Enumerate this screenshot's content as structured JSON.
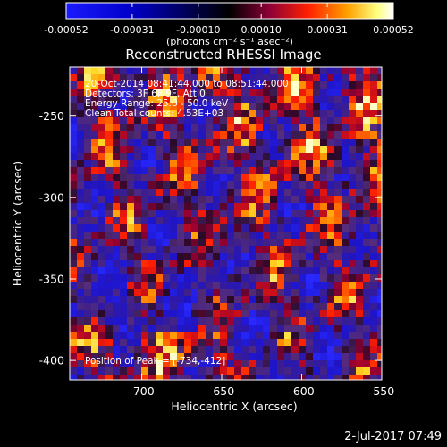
{
  "chart_data": {
    "type": "heatmap",
    "title": "Reconstructed RHESSI Image",
    "xlabel": "Heliocentric X (arcsec)",
    "ylabel": "Heliocentric Y (arcsec)",
    "xlim": [
      -745,
      -550
    ],
    "ylim": [
      -412,
      -220
    ],
    "x_ticks": [
      "-700",
      "-650",
      "-600",
      "-550"
    ],
    "x_tick_values": [
      -700,
      -650,
      -600,
      -550
    ],
    "y_ticks": [
      "-250",
      "-300",
      "-350",
      "-400"
    ],
    "y_tick_values": [
      -250,
      -300,
      -350,
      -400
    ],
    "colorbar": {
      "range": [
        -0.00052,
        0.00052
      ],
      "tick_labels": [
        "-0.00052",
        "-0.00031",
        "-0.00010",
        "0.00010",
        "0.00031",
        "0.00052"
      ],
      "tick_values": [
        -0.00052,
        -0.00031,
        -0.0001,
        0.0001,
        0.00031,
        0.00052
      ],
      "units_label": "(photons cm⁻² s⁻¹ asec⁻²)",
      "colors": [
        "#0000ff",
        "#000000",
        "#b0003c",
        "#ff6000",
        "#ffd200",
        "#ffffff"
      ]
    },
    "annotations": [
      "20-Oct-2014 08:41:44.000 to 08:51:44.000",
      "Detectors: 3F 6F 9F, Att 0",
      "Energy Range: 25.0 - 50.0 keV",
      "Clean     Total counts: 4.53E+03"
    ],
    "peak_label": "Position of Peak = [-734,-412]",
    "peak_position": [
      -734,
      -412
    ]
  },
  "footer": {
    "date": "2-Jul-2017 07:49"
  }
}
